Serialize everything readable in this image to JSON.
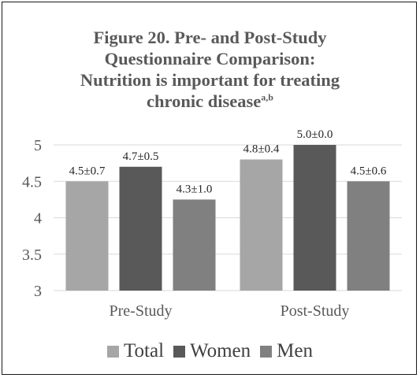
{
  "colors": {
    "total": "#a6a6a6",
    "women": "#595959",
    "men": "#808080",
    "grid": "#d9d9d9",
    "text": "#595959"
  },
  "chart_data": {
    "type": "bar",
    "title": "Figure 20. Pre- and Post-Study Questionnaire Comparison: Nutrition is important for treating chronic disease",
    "title_lines": [
      "Figure 20. Pre- and Post-Study",
      "Questionnaire Comparison:",
      "Nutrition is important for treating",
      "chronic disease"
    ],
    "title_superscript": "a,b",
    "categories": [
      "Pre-Study",
      "Post-Study"
    ],
    "series": [
      {
        "name": "Total",
        "values": [
          4.5,
          4.8
        ],
        "labels": [
          "4.5±0.7",
          "4.8±0.4"
        ],
        "color": "#a6a6a6"
      },
      {
        "name": "Women",
        "values": [
          4.7,
          5.0
        ],
        "labels": [
          "4.7±0.5",
          "5.0±0.0"
        ],
        "color": "#595959"
      },
      {
        "name": "Men",
        "values": [
          4.25,
          4.5
        ],
        "labels": [
          "4.3±1.0",
          "4.5±0.6"
        ],
        "color": "#808080"
      }
    ],
    "ylim": [
      3,
      5
    ],
    "yticks": [
      "3",
      "3.5",
      "4",
      "4.5",
      "5"
    ],
    "grid": true,
    "legend": "bottom"
  }
}
